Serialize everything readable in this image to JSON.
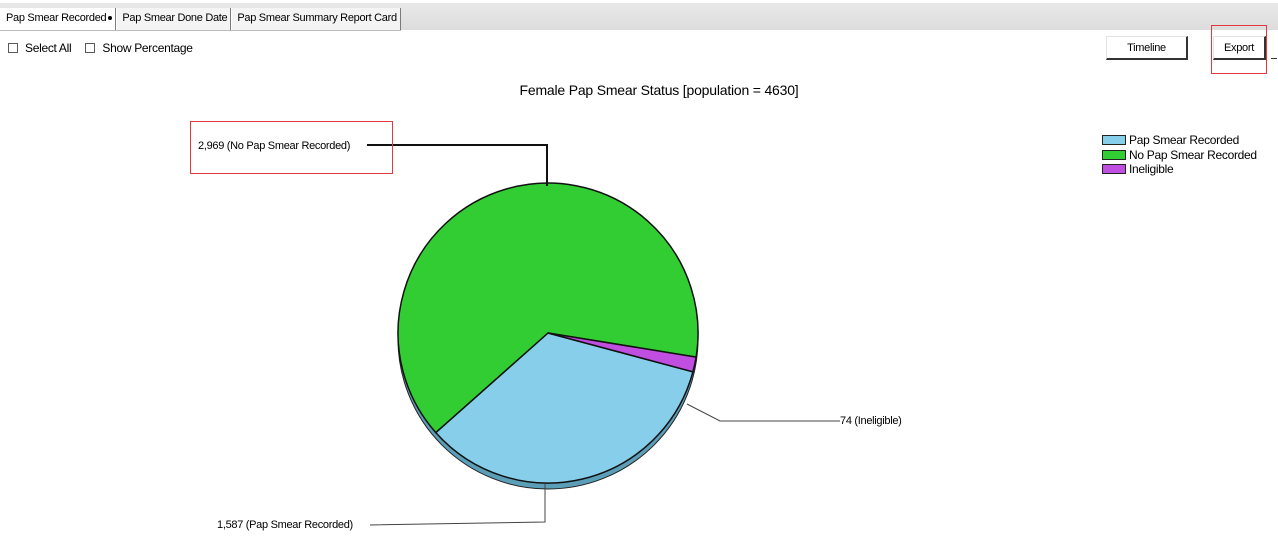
{
  "tabs": [
    {
      "label": "Pap Smear Recorded",
      "active": true
    },
    {
      "label": "Pap Smear Done Date",
      "active": false
    },
    {
      "label": "Pap Smear Summary Report Card",
      "active": false
    }
  ],
  "options": {
    "select_all": "Select All",
    "show_percentage": "Show Percentage"
  },
  "buttons": {
    "timeline": "Timeline",
    "export": "Export"
  },
  "chart_data": {
    "type": "pie",
    "title": "Female Pap Smear Status  [population = 4630]",
    "slices": [
      {
        "name": "Pap Smear Recorded",
        "value": 1587,
        "label": "1,587 (Pap Smear Recorded)",
        "color": "#87ceeb"
      },
      {
        "name": "No Pap Smear Recorded",
        "value": 2969,
        "label": "2,969 (No Pap Smear Recorded)",
        "color": "#32cd32"
      },
      {
        "name": "Ineligible",
        "value": 74,
        "label": "74 (Ineligible)",
        "color": "#c04ee0"
      }
    ],
    "legend": {
      "placement": "top-right"
    }
  }
}
